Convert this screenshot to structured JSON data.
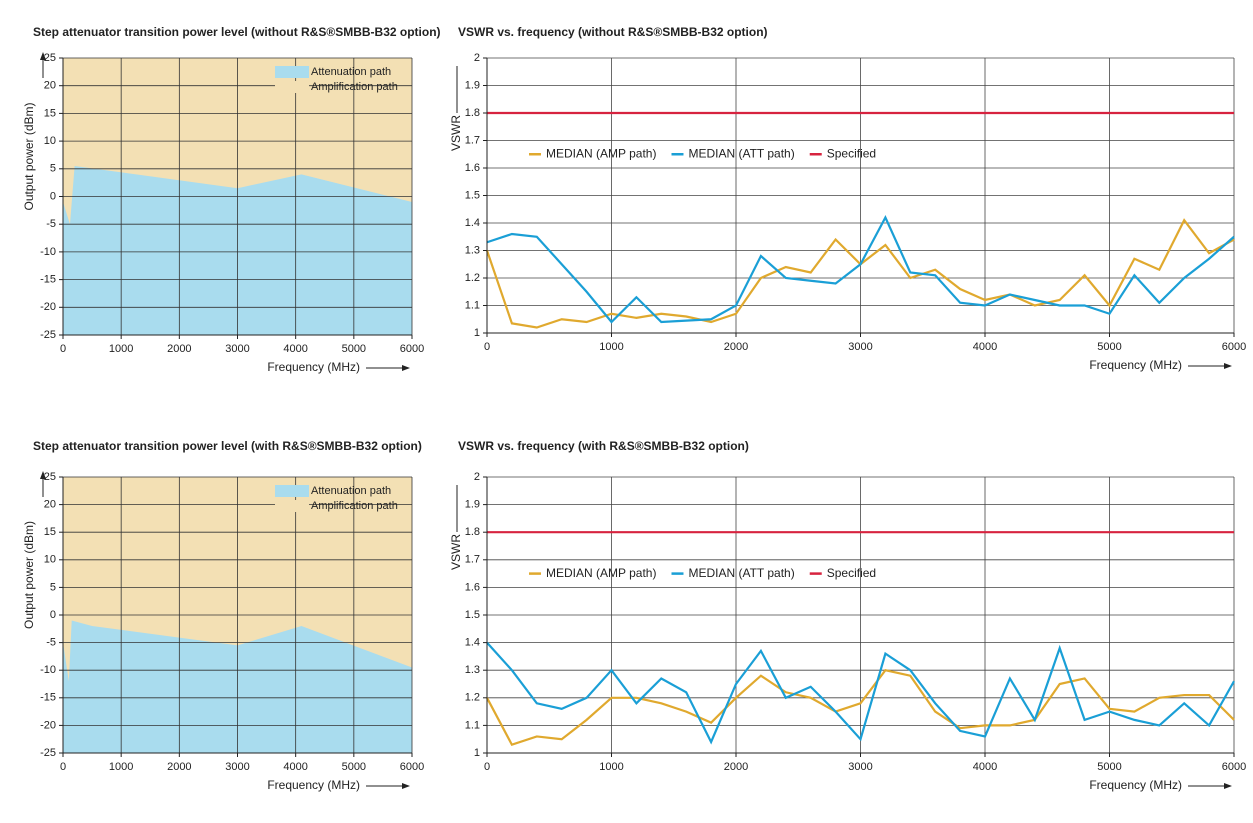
{
  "chart_data": [
    {
      "type": "area",
      "title": "Step attenuator transition power level (without R&S®SMBB-B32 option)",
      "x_label": "Frequency (MHz)",
      "y_label": "Output power (dBm)",
      "x": [
        0,
        120,
        200,
        3000,
        4100,
        6000
      ],
      "series": [
        {
          "name": "Attenuation path",
          "color": "#a9dcee",
          "values": [
            -1,
            -5,
            5.5,
            1.5,
            4,
            -1
          ]
        },
        {
          "name": "Amplification path",
          "color": "#f3e0b4",
          "values": [
            25,
            25,
            25,
            25,
            25,
            25
          ]
        }
      ],
      "xlim": [
        0,
        6000
      ],
      "xticks": [
        0,
        1000,
        2000,
        3000,
        4000,
        5000,
        6000
      ],
      "ylim": [
        -25,
        25
      ],
      "yticks": [
        -25,
        -20,
        -15,
        -10,
        -5,
        0,
        5,
        10,
        15,
        20,
        25
      ],
      "grid": true,
      "legend": "upper right"
    },
    {
      "type": "line",
      "title": "VSWR vs. frequency (without R&S®SMBB-B32 option)",
      "x_label": "Frequency (MHz)",
      "y_label": "VSWR",
      "x": [
        0,
        200,
        400,
        600,
        800,
        1000,
        1200,
        1400,
        1600,
        1800,
        2000,
        2200,
        2400,
        2600,
        2800,
        3000,
        3200,
        3400,
        3600,
        3800,
        4000,
        4200,
        4400,
        4600,
        4800,
        5000,
        5200,
        5400,
        5600,
        5800,
        6000
      ],
      "series": [
        {
          "name": "MEDIAN (AMP path)",
          "color": "#e0a92e",
          "values": [
            1.3,
            1.035,
            1.02,
            1.05,
            1.04,
            1.07,
            1.055,
            1.07,
            1.06,
            1.04,
            1.07,
            1.2,
            1.24,
            1.22,
            1.34,
            1.25,
            1.32,
            1.2,
            1.23,
            1.16,
            1.12,
            1.14,
            1.1,
            1.12,
            1.21,
            1.1,
            1.27,
            1.23,
            1.41,
            1.29,
            1.34
          ]
        },
        {
          "name": "MEDIAN (ATT path)",
          "color": "#1a9fd6",
          "values": [
            1.33,
            1.36,
            1.35,
            1.25,
            1.15,
            1.04,
            1.13,
            1.04,
            1.045,
            1.05,
            1.1,
            1.28,
            1.2,
            1.19,
            1.18,
            1.25,
            1.42,
            1.22,
            1.21,
            1.11,
            1.1,
            1.14,
            1.12,
            1.1,
            1.1,
            1.07,
            1.21,
            1.11,
            1.2,
            1.27,
            1.35
          ]
        },
        {
          "name": "Specified",
          "color": "#d7233f",
          "values": [
            1.8,
            1.8,
            1.8,
            1.8,
            1.8,
            1.8,
            1.8,
            1.8,
            1.8,
            1.8,
            1.8,
            1.8,
            1.8,
            1.8,
            1.8,
            1.8,
            1.8,
            1.8,
            1.8,
            1.8,
            1.8,
            1.8,
            1.8,
            1.8,
            1.8,
            1.8,
            1.8,
            1.8,
            1.8,
            1.8,
            1.8
          ]
        }
      ],
      "xlim": [
        0,
        6000
      ],
      "xticks": [
        0,
        1000,
        2000,
        3000,
        4000,
        5000,
        6000
      ],
      "ylim": [
        1,
        2
      ],
      "yticks": [
        1,
        1.1,
        1.2,
        1.3,
        1.4,
        1.5,
        1.6,
        1.7,
        1.8,
        1.9,
        2
      ],
      "grid": true,
      "legend": "upper left"
    },
    {
      "type": "area",
      "title": "Step attenuator transition power level (with R&S®SMBB-B32 option)",
      "x_label": "Frequency (MHz)",
      "y_label": "Output power (dBm)",
      "x": [
        0,
        100,
        150,
        500,
        3000,
        4100,
        6000
      ],
      "series": [
        {
          "name": "Attenuation path",
          "color": "#a9dcee",
          "values": [
            -5,
            -12,
            -1,
            -2,
            -5.5,
            -2,
            -9.5
          ]
        },
        {
          "name": "Amplification path",
          "color": "#f3e0b4",
          "values": [
            25,
            25,
            25,
            25,
            25,
            25,
            25
          ]
        }
      ],
      "xlim": [
        0,
        6000
      ],
      "xticks": [
        0,
        1000,
        2000,
        3000,
        4000,
        5000,
        6000
      ],
      "ylim": [
        -25,
        25
      ],
      "yticks": [
        -25,
        -20,
        -15,
        -10,
        -5,
        0,
        5,
        10,
        15,
        20,
        25
      ],
      "grid": true,
      "legend": "upper right"
    },
    {
      "type": "line",
      "title": "VSWR vs. frequency (with R&S®SMBB-B32 option)",
      "x_label": "Frequency (MHz)",
      "y_label": "VSWR",
      "x": [
        0,
        200,
        400,
        600,
        800,
        1000,
        1200,
        1400,
        1600,
        1800,
        2000,
        2200,
        2400,
        2600,
        2800,
        3000,
        3200,
        3400,
        3600,
        3800,
        4000,
        4200,
        4400,
        4600,
        4800,
        5000,
        5200,
        5400,
        5600,
        5800,
        6000
      ],
      "series": [
        {
          "name": "MEDIAN (AMP path)",
          "color": "#e0a92e",
          "values": [
            1.2,
            1.03,
            1.06,
            1.05,
            1.12,
            1.2,
            1.2,
            1.18,
            1.15,
            1.11,
            1.2,
            1.28,
            1.22,
            1.2,
            1.15,
            1.18,
            1.3,
            1.28,
            1.15,
            1.09,
            1.1,
            1.1,
            1.12,
            1.25,
            1.27,
            1.16,
            1.15,
            1.2,
            1.21,
            1.21,
            1.12
          ]
        },
        {
          "name": "MEDIAN (ATT path)",
          "color": "#1a9fd6",
          "values": [
            1.4,
            1.3,
            1.18,
            1.16,
            1.2,
            1.3,
            1.18,
            1.27,
            1.22,
            1.04,
            1.25,
            1.37,
            1.2,
            1.24,
            1.15,
            1.05,
            1.36,
            1.3,
            1.18,
            1.08,
            1.06,
            1.27,
            1.12,
            1.38,
            1.12,
            1.15,
            1.12,
            1.1,
            1.18,
            1.1,
            1.26
          ]
        },
        {
          "name": "Specified",
          "color": "#d7233f",
          "values": [
            1.8,
            1.8,
            1.8,
            1.8,
            1.8,
            1.8,
            1.8,
            1.8,
            1.8,
            1.8,
            1.8,
            1.8,
            1.8,
            1.8,
            1.8,
            1.8,
            1.8,
            1.8,
            1.8,
            1.8,
            1.8,
            1.8,
            1.8,
            1.8,
            1.8,
            1.8,
            1.8,
            1.8,
            1.8,
            1.8,
            1.8
          ]
        }
      ],
      "xlim": [
        0,
        6000
      ],
      "xticks": [
        0,
        1000,
        2000,
        3000,
        4000,
        5000,
        6000
      ],
      "ylim": [
        1,
        2
      ],
      "yticks": [
        1,
        1.1,
        1.2,
        1.3,
        1.4,
        1.5,
        1.6,
        1.7,
        1.8,
        1.9,
        2
      ],
      "grid": true,
      "legend": "upper left"
    }
  ]
}
